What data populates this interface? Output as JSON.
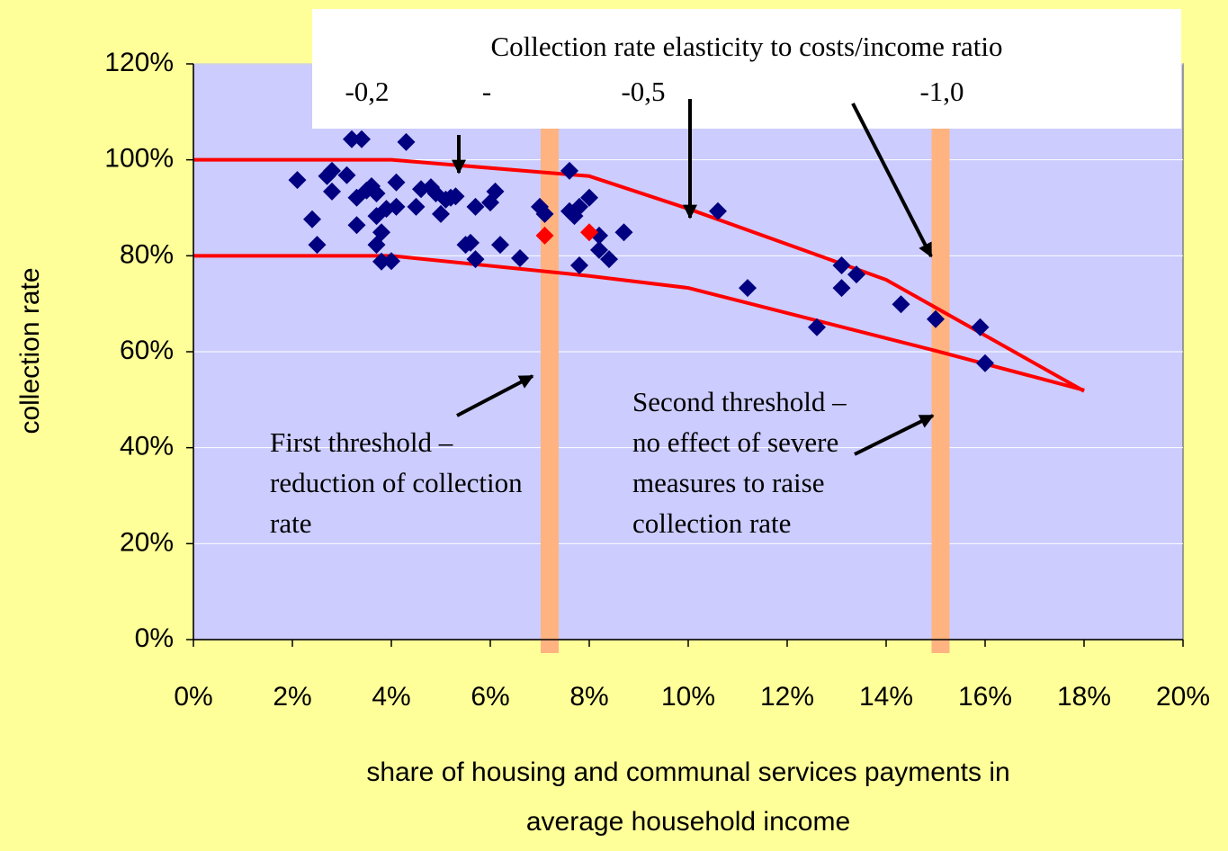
{
  "chart_data": {
    "type": "scatter",
    "xlabel": [
      "share of housing and communal services payments in",
      "average household income"
    ],
    "ylabel": "collection rate",
    "xlim": [
      0,
      20
    ],
    "ylim": [
      0,
      120
    ],
    "xticks": [
      {
        "value": 0,
        "label": "0%"
      },
      {
        "value": 2,
        "label": "2%"
      },
      {
        "value": 4,
        "label": "4%"
      },
      {
        "value": 6,
        "label": "6%"
      },
      {
        "value": 8,
        "label": "8%"
      },
      {
        "value": 10,
        "label": "10%"
      },
      {
        "value": 12,
        "label": "12%"
      },
      {
        "value": 14,
        "label": "14%"
      },
      {
        "value": 16,
        "label": "16%"
      },
      {
        "value": 18,
        "label": "18%"
      },
      {
        "value": 20,
        "label": "20%"
      }
    ],
    "yticks": [
      {
        "value": 0,
        "label": "0%"
      },
      {
        "value": 20,
        "label": "20%"
      },
      {
        "value": 40,
        "label": "40%"
      },
      {
        "value": 60,
        "label": "60%"
      },
      {
        "value": 80,
        "label": "80%"
      },
      {
        "value": 100,
        "label": "100%"
      },
      {
        "value": 120,
        "label": "120%"
      }
    ],
    "grid": true,
    "series": [
      {
        "color": "#000080",
        "x": [
          2.1,
          2.4,
          2.5,
          2.7,
          2.8,
          2.8,
          3.1,
          3.2,
          3.4,
          3.3,
          3.3,
          3.5,
          3.6,
          3.7,
          3.7,
          3.7,
          3.8,
          3.8,
          3.9,
          4.0,
          4.1,
          4.1,
          4.3,
          4.5,
          4.6,
          4.8,
          4.9,
          5.0,
          5.1,
          5.2,
          5.3,
          5.5,
          5.6,
          5.7,
          5.7,
          6.0,
          6.1,
          6.2,
          6.6,
          7.0,
          7.1,
          7.6,
          7.6,
          7.7,
          7.8,
          7.8,
          8.0,
          8.2,
          8.2,
          8.4,
          8.7,
          10.6,
          11.2,
          12.6,
          13.1,
          13.1,
          13.4,
          14.3,
          15.0,
          15.9,
          16.0
        ],
        "values": [
          95.8,
          87.6,
          82.3,
          96.6,
          97.7,
          93.4,
          96.8,
          104.3,
          104.3,
          92.1,
          86.4,
          93.6,
          94.5,
          93.0,
          88.3,
          82.3,
          78.8,
          84.9,
          89.8,
          78.9,
          95.3,
          90.2,
          103.7,
          90.2,
          93.9,
          94.3,
          93.0,
          88.7,
          91.7,
          92.1,
          92.4,
          82.3,
          82.7,
          79.3,
          90.2,
          91.1,
          93.4,
          82.3,
          79.5,
          90.2,
          88.7,
          97.7,
          89.3,
          88.3,
          90.2,
          78.0,
          92.1,
          84.2,
          81.2,
          79.3,
          84.9,
          89.3,
          73.3,
          65.1,
          78.0,
          73.3,
          76.1,
          69.9,
          66.8,
          65.1,
          57.6
        ]
      },
      {
        "color": "#FF0000",
        "x": [
          7.1,
          8.0
        ],
        "values": [
          84.2,
          84.9
        ]
      }
    ],
    "lines": [
      {
        "color": "#FF0000",
        "x": [
          0,
          4,
          8,
          10,
          14,
          18
        ],
        "values": [
          100,
          100,
          96.6,
          89.8,
          75,
          51.8
        ]
      },
      {
        "color": "#FF0000",
        "x": [
          0,
          4,
          8,
          10,
          15,
          18
        ],
        "values": [
          80,
          80,
          75.8,
          73.3,
          60.2,
          52
        ]
      }
    ],
    "thresholds": {
      "color": "#FFB380",
      "values": [
        7.2,
        15.1
      ]
    },
    "annotations": {
      "elasticity_title": "Collection rate elasticity to costs/income ratio",
      "elasticity_labels": [
        "-0,2",
        "-",
        "-0,5",
        "-1,0"
      ],
      "first_threshold": [
        "First threshold –",
        "reduction of collection",
        "rate"
      ],
      "second_threshold": [
        "Second threshold –",
        "no effect of severe",
        "measures to raise",
        "collection rate"
      ]
    }
  }
}
